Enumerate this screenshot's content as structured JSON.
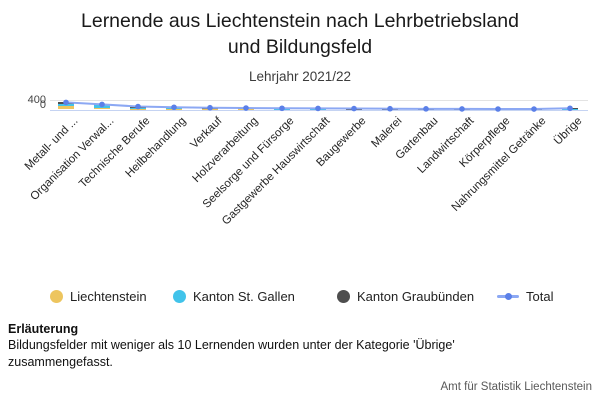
{
  "chart_data": {
    "type": "bar",
    "subtype": "stacked-bar-with-total-line",
    "title": "Lernende aus Liechtenstein nach Lehrbetriebsland und Bildungsfeld",
    "title_lines": [
      "Lernende aus Liechtenstein nach Lehrbetriebsland",
      "und Bildungsfeld"
    ],
    "subtitle": "Lehrjahr 2021/22",
    "categories": [
      "Metall- und ...",
      "Organisation Verwal...",
      "Technische Berufe",
      "Heilbehandlung",
      "Verkauf",
      "Holzverarbeitung",
      "Seelsorge und Fürsorge",
      "Gastgewerbe Hauswirtschaft",
      "Baugewerbe",
      "Malerei",
      "Gartenbau",
      "Landwirtschaft",
      "Körperpflege",
      "Nahrungsmittel Getränke",
      "Übrige"
    ],
    "series": [
      {
        "name": "Liechtenstein",
        "color": "#EDC55E",
        "values": [
          130,
          80,
          40,
          35,
          30,
          25,
          20,
          18,
          16,
          13,
          11,
          9,
          8,
          7,
          20
        ]
      },
      {
        "name": "Kanton St. Gallen",
        "color": "#41C3EA",
        "values": [
          110,
          90,
          55,
          40,
          30,
          25,
          22,
          18,
          16,
          13,
          11,
          10,
          9,
          8,
          20
        ]
      },
      {
        "name": "Kanton Graubünden",
        "color": "#4E4E4E",
        "values": [
          60,
          45,
          30,
          20,
          15,
          12,
          10,
          10,
          8,
          7,
          6,
          5,
          4,
          4,
          12
        ]
      }
    ],
    "line_series": {
      "name": "Total",
      "line_color": "#8CA8F3",
      "dot_color": "#5B80E8",
      "values": [
        300,
        215,
        125,
        95,
        75,
        62,
        52,
        46,
        40,
        33,
        28,
        24,
        21,
        19,
        52
      ]
    },
    "ylim": [
      0,
      400
    ],
    "yticks": [
      400,
      0
    ],
    "grid": true,
    "grid_color": "#E3E3E3",
    "axis_color": "#C5D3F2",
    "legend_position": "bottom",
    "xlabel": "",
    "ylabel": ""
  },
  "footnote": {
    "heading": "Erläuterung",
    "text": "Bildungsfelder mit weniger als 10 Lernenden wurden unter der Kategorie 'Übrige' zusammengefasst."
  },
  "source": "Amt für Statistik Liechtenstein"
}
